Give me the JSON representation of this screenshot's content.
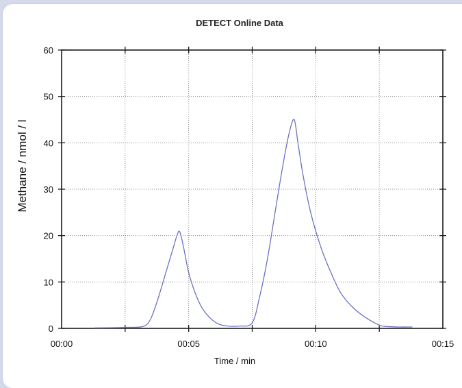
{
  "chart_data": {
    "type": "line",
    "title": "DETECT Online Data",
    "xlabel": "Time  /  min",
    "ylabel": "Methane  /  nmol / l",
    "xlim": [
      0,
      15
    ],
    "ylim": [
      0,
      60
    ],
    "x_ticks": [
      0,
      5,
      10,
      15
    ],
    "x_tick_labels": [
      "00:00",
      "00:05",
      "00:10",
      "00:15"
    ],
    "y_ticks": [
      0,
      10,
      20,
      30,
      40,
      50,
      60
    ],
    "y_tick_labels": [
      "0",
      "10",
      "20",
      "30",
      "40",
      "50",
      "60"
    ],
    "x_gridlines": [
      2.5,
      5,
      7.5,
      10,
      12.5
    ],
    "y_gridlines": [
      10,
      20,
      30,
      40,
      50
    ],
    "grid": true,
    "line_color": "#6b72c2",
    "series": [
      {
        "x": [
          1.3,
          2.5,
          3.2,
          3.5,
          3.8,
          4.1,
          4.4,
          4.55,
          4.65,
          4.8,
          5.0,
          5.3,
          5.6,
          6.0,
          6.4,
          7.0,
          7.5,
          7.8,
          8.1,
          8.4,
          8.7,
          8.95,
          9.15,
          9.3,
          9.5,
          9.8,
          10.2,
          10.6,
          11.0,
          11.5,
          12.0,
          12.5,
          12.8,
          13.3,
          13.8
        ],
        "y": [
          0.1,
          0.2,
          0.4,
          2.0,
          6.5,
          12.0,
          17.5,
          20.2,
          20.8,
          17.5,
          12.0,
          7.0,
          3.8,
          1.5,
          0.6,
          0.5,
          1.2,
          7.0,
          15.0,
          25.0,
          35.0,
          42.0,
          45.0,
          40.0,
          33.0,
          25.0,
          17.5,
          12.0,
          7.5,
          4.3,
          2.2,
          0.7,
          0.4,
          0.3,
          0.3
        ]
      }
    ]
  }
}
